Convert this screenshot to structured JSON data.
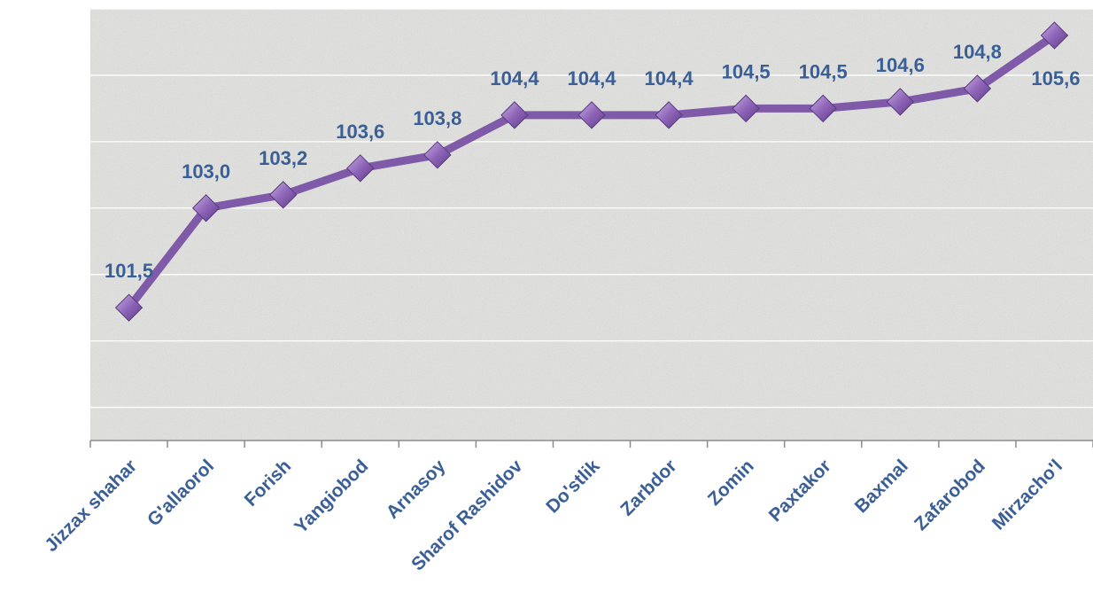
{
  "chart_data": {
    "type": "line",
    "categories": [
      "Jizzax shahar",
      "G'allaorol",
      "Forish",
      "Yangiobod",
      "Arnasoy",
      "Sharof Rashidov",
      "Do'stlik",
      "Zarbdor",
      "Zomin",
      "Paxtakor",
      "Baxmal",
      "Zafarobod",
      "Mirzacho'l"
    ],
    "values": [
      101.5,
      103.0,
      103.2,
      103.6,
      103.8,
      104.4,
      104.4,
      104.4,
      104.5,
      104.5,
      104.6,
      104.8,
      105.6
    ],
    "value_labels": [
      "101,5",
      "103,0",
      "103,2",
      "103,6",
      "103,8",
      "104,4",
      "104,4",
      "104,4",
      "104,5",
      "104,5",
      "104,6",
      "104,8",
      "105,6"
    ],
    "title": "",
    "xlabel": "",
    "ylabel": "",
    "ylim": [
      99.5,
      106
    ],
    "grid": true,
    "legend": "none",
    "colors": {
      "line": "#7f5aa8",
      "marker": "#8e64b8",
      "label": "#3a5f96",
      "background": "#e4e4e2",
      "gridline": "#ffffff",
      "axis": "#8c8c8c"
    }
  }
}
